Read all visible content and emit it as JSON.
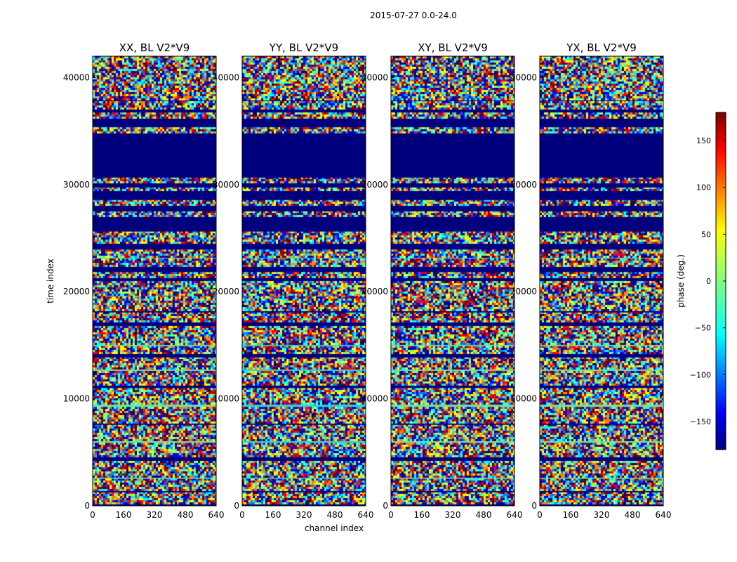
{
  "figure": {
    "suptitle": "2015-07-27 0.0-24.0"
  },
  "chart_data": [
    {
      "type": "heatmap",
      "title": "XX, BL V2*V9",
      "xlabel": "",
      "ylabel": "time index",
      "xlim": [
        0,
        640
      ],
      "ylim": [
        0,
        42000
      ],
      "xticks": [
        0,
        160,
        320,
        480,
        640
      ],
      "yticks": [
        0,
        10000,
        20000,
        30000,
        40000
      ],
      "xtick_labels": [
        "0",
        "160",
        "320",
        "480",
        "640"
      ],
      "ytick_labels": [
        "0",
        "10000",
        "20000",
        "30000",
        "40000"
      ],
      "value_range": [
        -180,
        180
      ]
    },
    {
      "type": "heatmap",
      "title": "YY, BL V2*V9",
      "xlabel": "channel index",
      "ylabel": "",
      "xlim": [
        0,
        640
      ],
      "ylim": [
        0,
        42000
      ],
      "xticks": [
        0,
        160,
        320,
        480,
        640
      ],
      "yticks": [
        0,
        10000,
        20000,
        30000,
        40000
      ],
      "xtick_labels": [
        "0",
        "160",
        "320",
        "480",
        "640"
      ],
      "ytick_labels": [
        "0",
        "10000",
        "20000",
        "30000",
        "40000"
      ],
      "value_range": [
        -180,
        180
      ]
    },
    {
      "type": "heatmap",
      "title": "XY, BL V2*V9",
      "xlabel": "",
      "ylabel": "",
      "xlim": [
        0,
        640
      ],
      "ylim": [
        0,
        42000
      ],
      "xticks": [
        0,
        160,
        320,
        480,
        640
      ],
      "yticks": [
        0,
        10000,
        20000,
        30000,
        40000
      ],
      "xtick_labels": [
        "0",
        "160",
        "320",
        "480",
        "640"
      ],
      "ytick_labels": [
        "0",
        "10000",
        "20000",
        "30000",
        "40000"
      ],
      "value_range": [
        -180,
        180
      ]
    },
    {
      "type": "heatmap",
      "title": "YX, BL V2*V9",
      "xlabel": "",
      "ylabel": "",
      "xlim": [
        0,
        640
      ],
      "ylim": [
        0,
        42000
      ],
      "xticks": [
        0,
        160,
        320,
        480,
        640
      ],
      "yticks": [
        0,
        10000,
        20000,
        30000,
        40000
      ],
      "xtick_labels": [
        "0",
        "160",
        "320",
        "480",
        "640"
      ],
      "ytick_labels": [
        "0",
        "10000",
        "20000",
        "30000",
        "40000"
      ],
      "value_range": [
        -180,
        180
      ]
    }
  ],
  "colorbar": {
    "label": "phase (deg.)",
    "colormap": "jet",
    "range": [
      -180,
      180
    ],
    "ticks": [
      -150,
      -100,
      -50,
      0,
      50,
      100,
      150
    ],
    "tick_labels": [
      "−150",
      "−100",
      "−50",
      "0",
      "50",
      "100",
      "150"
    ]
  },
  "colors": {
    "noise_palette": [
      "#00007f",
      "#0000ff",
      "#0080ff",
      "#00ffff",
      "#7fff7f",
      "#ffff00",
      "#ff8000",
      "#ff0000",
      "#7f0000"
    ],
    "flagged_band": "#00007f",
    "calm_band": "#6fe3a0",
    "cyan_band": "#2ad4e8"
  },
  "band_pattern": [
    [
      0.0,
      0.006,
      "flagged"
    ],
    [
      0.006,
      0.03,
      "noise"
    ],
    [
      0.03,
      0.035,
      "flagged"
    ],
    [
      0.035,
      0.06,
      "noise"
    ],
    [
      0.06,
      0.066,
      "calm"
    ],
    [
      0.066,
      0.1,
      "noise"
    ],
    [
      0.1,
      0.108,
      "flagged"
    ],
    [
      0.108,
      0.14,
      "noise"
    ],
    [
      0.14,
      0.145,
      "calm"
    ],
    [
      0.145,
      0.18,
      "noise"
    ],
    [
      0.18,
      0.186,
      "flagged"
    ],
    [
      0.186,
      0.22,
      "noise"
    ],
    [
      0.22,
      0.226,
      "calm"
    ],
    [
      0.226,
      0.262,
      "noise"
    ],
    [
      0.262,
      0.27,
      "flagged"
    ],
    [
      0.27,
      0.3,
      "noise"
    ],
    [
      0.3,
      0.306,
      "calm"
    ],
    [
      0.306,
      0.33,
      "noise"
    ],
    [
      0.33,
      0.338,
      "flagged"
    ],
    [
      0.338,
      0.355,
      "noise"
    ],
    [
      0.355,
      0.362,
      "calm"
    ],
    [
      0.362,
      0.4,
      "noise"
    ],
    [
      0.4,
      0.408,
      "flagged"
    ],
    [
      0.408,
      0.43,
      "noise"
    ],
    [
      0.43,
      0.436,
      "flagged"
    ],
    [
      0.436,
      0.47,
      "noise"
    ],
    [
      0.47,
      0.5,
      "noise"
    ],
    [
      0.5,
      0.508,
      "flagged"
    ],
    [
      0.508,
      0.52,
      "noise"
    ],
    [
      0.52,
      0.532,
      "flagged"
    ],
    [
      0.532,
      0.55,
      "noise"
    ],
    [
      0.55,
      0.556,
      "calm"
    ],
    [
      0.556,
      0.57,
      "noise"
    ],
    [
      0.57,
      0.585,
      "flagged"
    ],
    [
      0.585,
      0.61,
      "noise"
    ],
    [
      0.61,
      0.645,
      "flagged"
    ],
    [
      0.645,
      0.655,
      "noise"
    ],
    [
      0.655,
      0.668,
      "flagged"
    ],
    [
      0.668,
      0.68,
      "noise"
    ],
    [
      0.68,
      0.7,
      "flagged"
    ],
    [
      0.7,
      0.708,
      "noise"
    ],
    [
      0.708,
      0.72,
      "flagged"
    ],
    [
      0.72,
      0.73,
      "noise"
    ],
    [
      0.73,
      0.83,
      "flagged"
    ],
    [
      0.83,
      0.842,
      "noise"
    ],
    [
      0.842,
      0.862,
      "flagged"
    ],
    [
      0.862,
      0.875,
      "noise"
    ],
    [
      0.875,
      0.882,
      "flagged"
    ],
    [
      0.882,
      0.9,
      "noise"
    ],
    [
      0.9,
      0.905,
      "flagged"
    ],
    [
      0.905,
      1.0,
      "noise"
    ]
  ]
}
